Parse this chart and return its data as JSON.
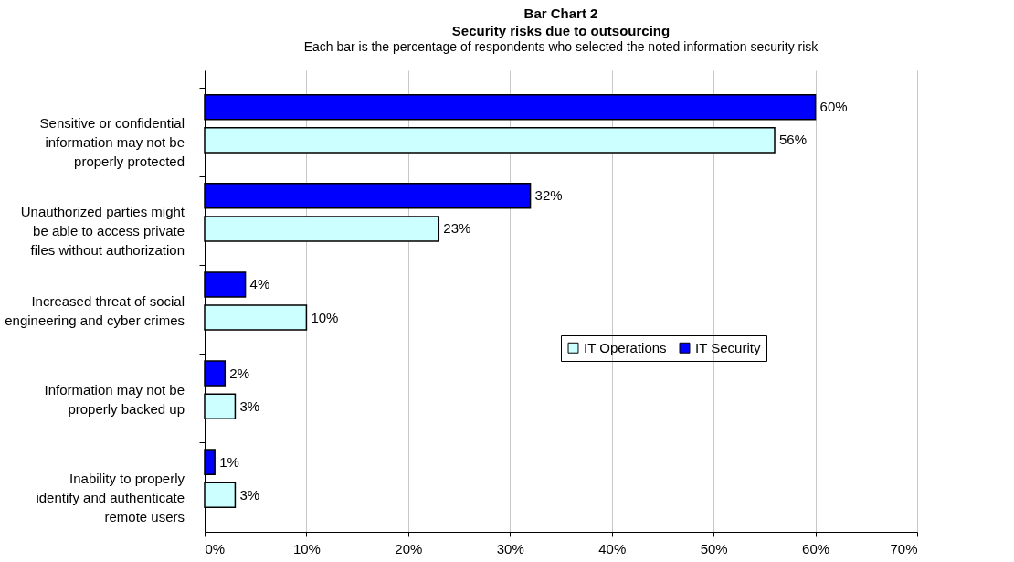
{
  "chart_data": {
    "type": "bar",
    "orientation": "horizontal",
    "title": "Bar Chart 2\nSecurity risks due to outsourcing",
    "subtitle": "Each bar is the percentage of respondents who selected the noted information security risk",
    "categories": [
      "Sensitive or confidential information may not be properly protected",
      "Unauthorized parties might be able to access private files without authorization",
      "Increased threat of social engineering and cyber crimes",
      "Information may not be properly backed up",
      "Inability to properly identify and authenticate remote users"
    ],
    "series": [
      {
        "name": "IT Operations",
        "color": "#ccffff",
        "values": [
          56,
          23,
          10,
          3,
          3
        ],
        "value_labels": [
          "56%",
          "23%",
          "10%",
          "3%",
          "3%"
        ]
      },
      {
        "name": "IT Security",
        "color": "#0000ff",
        "values": [
          60,
          32,
          4,
          2,
          1
        ],
        "value_labels": [
          "60%",
          "32%",
          "4%",
          "2%",
          "1%"
        ]
      }
    ],
    "xlim": [
      0,
      70
    ],
    "xticks": [
      {
        "value": 0,
        "label": "0%"
      },
      {
        "value": 10,
        "label": "10%"
      },
      {
        "value": 20,
        "label": "20%"
      },
      {
        "value": 30,
        "label": "30%"
      },
      {
        "value": 40,
        "label": "40%"
      },
      {
        "value": 50,
        "label": "50%"
      },
      {
        "value": 60,
        "label": "60%"
      },
      {
        "value": 70,
        "label": "70%"
      }
    ],
    "grid": "x",
    "legend": "right"
  }
}
